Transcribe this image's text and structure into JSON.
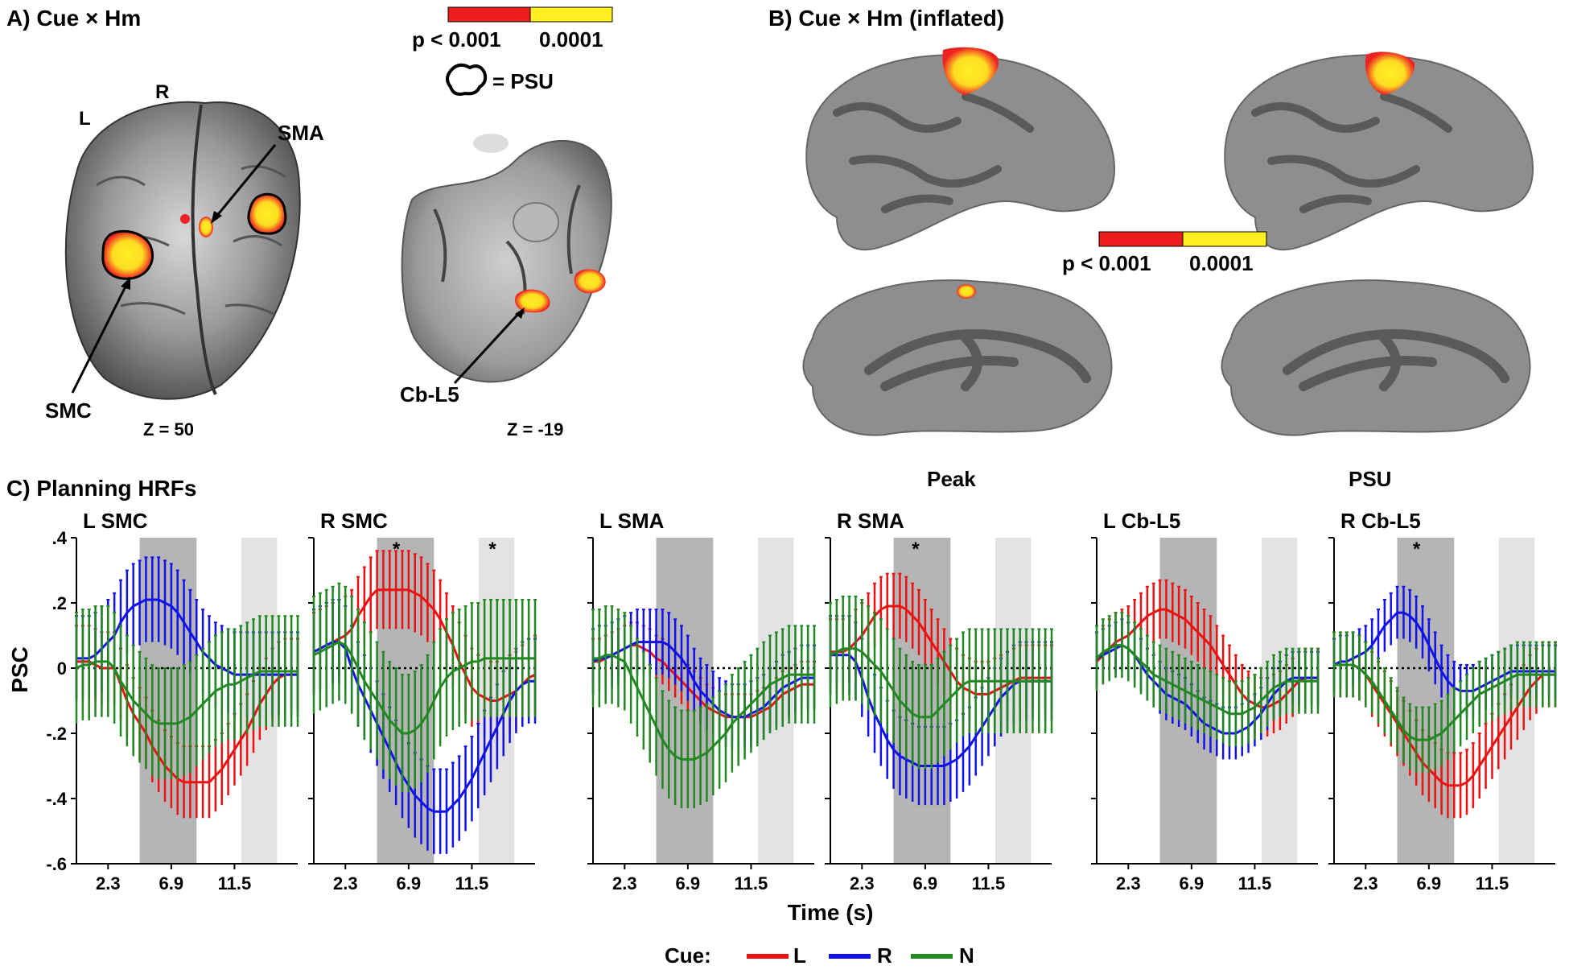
{
  "panel_a": {
    "title": "A) Cue × Hm",
    "colorbar": {
      "low_label": "p < 0.001",
      "high_label": "0.0001",
      "low_color": "#ee1c1c",
      "high_color": "#ffee22"
    },
    "psu_legend": "= PSU",
    "brain1": {
      "label_l": "L",
      "label_r": "R",
      "sma": "SMA",
      "smc": "SMC",
      "slice": "Z = 50"
    },
    "brain2": {
      "cb": "Cb-L5",
      "slice": "Z = -19"
    }
  },
  "panel_b": {
    "title": "B) Cue × Hm (inflated)",
    "colorbar": {
      "low_label": "p < 0.001",
      "high_label": "0.0001"
    },
    "col_peak": "Peak",
    "col_psu": "PSU"
  },
  "panel_c": {
    "title": "C) Planning HRFs",
    "ylabel": "PSC",
    "xlabel": "Time (s)",
    "legend": {
      "prefix": "Cue:",
      "items": [
        {
          "label": "L",
          "color": "#ee1111"
        },
        {
          "label": "R",
          "color": "#1111ee"
        },
        {
          "label": "N",
          "color": "#228822"
        }
      ]
    }
  },
  "chart_data": {
    "type": "line",
    "x": [
      0.0,
      0.46,
      0.92,
      1.38,
      1.84,
      2.3,
      2.76,
      3.22,
      3.68,
      4.14,
      4.6,
      5.06,
      5.52,
      5.98,
      6.44,
      6.9,
      7.36,
      7.82,
      8.28,
      8.74,
      9.2,
      9.66,
      10.12,
      10.58,
      11.04,
      11.5,
      11.96,
      12.42,
      12.88,
      13.34,
      13.8,
      14.26,
      14.72,
      15.18,
      15.64,
      16.1
    ],
    "xticks": [
      "2.3",
      "6.9",
      "11.5"
    ],
    "xtick_values": [
      2.3,
      6.9,
      11.5
    ],
    "ylim": [
      -0.6,
      0.4
    ],
    "yticks": [
      ".4",
      ".2",
      "0",
      "-.2",
      "-.4",
      "-.6"
    ],
    "ytick_values": [
      0.4,
      0.2,
      0,
      -0.2,
      -0.4,
      -0.6
    ],
    "xlabel": "Time (s)",
    "ylabel": "PSC",
    "shaded_windows": [
      {
        "from": 4.6,
        "to": 8.74,
        "shade": "dark"
      },
      {
        "from": 12.0,
        "to": 14.6,
        "shade": "light"
      }
    ],
    "subplots": [
      {
        "title": "L SMC",
        "stars": [],
        "series": [
          {
            "name": "L",
            "color": "#ee1111",
            "values": [
              0.02,
              0.02,
              0.02,
              0.01,
              0.0,
              0.0,
              0.0,
              -0.05,
              -0.1,
              -0.14,
              -0.17,
              -0.2,
              -0.24,
              -0.27,
              -0.3,
              -0.32,
              -0.34,
              -0.35,
              -0.35,
              -0.35,
              -0.35,
              -0.35,
              -0.33,
              -0.31,
              -0.28,
              -0.25,
              -0.22,
              -0.19,
              -0.15,
              -0.11,
              -0.08,
              -0.05,
              -0.03,
              -0.02,
              -0.02,
              -0.02
            ],
            "err": 0.11
          },
          {
            "name": "R",
            "color": "#1111ee",
            "values": [
              0.03,
              0.03,
              0.03,
              0.04,
              0.06,
              0.08,
              0.1,
              0.14,
              0.17,
              0.19,
              0.2,
              0.21,
              0.21,
              0.21,
              0.2,
              0.19,
              0.17,
              0.14,
              0.11,
              0.08,
              0.05,
              0.03,
              0.01,
              0.0,
              -0.01,
              -0.02,
              -0.02,
              -0.02,
              -0.02,
              -0.02,
              -0.02,
              -0.02,
              -0.02,
              -0.02,
              -0.02,
              -0.02
            ],
            "err": 0.13
          },
          {
            "name": "N",
            "color": "#228822",
            "values": [
              0.0,
              0.01,
              0.01,
              0.02,
              0.02,
              0.02,
              0.0,
              -0.04,
              -0.07,
              -0.1,
              -0.12,
              -0.14,
              -0.16,
              -0.17,
              -0.17,
              -0.17,
              -0.17,
              -0.16,
              -0.15,
              -0.13,
              -0.11,
              -0.09,
              -0.07,
              -0.06,
              -0.05,
              -0.05,
              -0.04,
              -0.03,
              -0.02,
              -0.01,
              -0.01,
              -0.01,
              -0.01,
              -0.01,
              -0.01,
              -0.01
            ],
            "err": 0.17
          }
        ]
      },
      {
        "title": "R SMC",
        "stars": [
          6.0,
          13.0
        ],
        "series": [
          {
            "name": "L",
            "color": "#ee1111",
            "values": [
              0.05,
              0.06,
              0.07,
              0.08,
              0.09,
              0.1,
              0.12,
              0.16,
              0.19,
              0.22,
              0.24,
              0.24,
              0.24,
              0.24,
              0.24,
              0.24,
              0.23,
              0.22,
              0.2,
              0.18,
              0.15,
              0.11,
              0.07,
              0.02,
              -0.02,
              -0.06,
              -0.08,
              -0.09,
              -0.1,
              -0.1,
              -0.09,
              -0.08,
              -0.07,
              -0.05,
              -0.03,
              -0.02
            ],
            "err": 0.12
          },
          {
            "name": "R",
            "color": "#1111ee",
            "values": [
              0.05,
              0.06,
              0.07,
              0.08,
              0.08,
              0.06,
              0.0,
              -0.05,
              -0.09,
              -0.13,
              -0.17,
              -0.21,
              -0.25,
              -0.29,
              -0.33,
              -0.36,
              -0.39,
              -0.41,
              -0.43,
              -0.44,
              -0.44,
              -0.44,
              -0.42,
              -0.4,
              -0.37,
              -0.34,
              -0.3,
              -0.26,
              -0.22,
              -0.18,
              -0.14,
              -0.1,
              -0.07,
              -0.05,
              -0.04,
              -0.04
            ],
            "err": 0.13
          },
          {
            "name": "N",
            "color": "#228822",
            "values": [
              0.04,
              0.05,
              0.06,
              0.07,
              0.08,
              0.07,
              0.04,
              0.0,
              -0.04,
              -0.07,
              -0.1,
              -0.13,
              -0.16,
              -0.18,
              -0.2,
              -0.2,
              -0.19,
              -0.17,
              -0.14,
              -0.1,
              -0.06,
              -0.03,
              -0.01,
              0.0,
              0.01,
              0.02,
              0.02,
              0.03,
              0.03,
              0.03,
              0.03,
              0.03,
              0.03,
              0.03,
              0.03,
              0.03
            ],
            "err": 0.18
          }
        ]
      },
      {
        "title": "L SMA",
        "stars": [],
        "series": [
          {
            "name": "L",
            "color": "#ee1111",
            "values": [
              0.02,
              0.02,
              0.03,
              0.04,
              0.05,
              0.06,
              0.07,
              0.07,
              0.06,
              0.05,
              0.03,
              0.02,
              0.0,
              -0.02,
              -0.04,
              -0.06,
              -0.08,
              -0.1,
              -0.12,
              -0.13,
              -0.14,
              -0.15,
              -0.15,
              -0.15,
              -0.15,
              -0.15,
              -0.14,
              -0.13,
              -0.12,
              -0.1,
              -0.08,
              -0.07,
              -0.06,
              -0.05,
              -0.05,
              -0.05
            ],
            "err": 0.07
          },
          {
            "name": "R",
            "color": "#1111ee",
            "values": [
              0.02,
              0.03,
              0.03,
              0.04,
              0.05,
              0.06,
              0.07,
              0.08,
              0.08,
              0.08,
              0.08,
              0.08,
              0.07,
              0.05,
              0.03,
              0.0,
              -0.04,
              -0.07,
              -0.09,
              -0.11,
              -0.13,
              -0.14,
              -0.15,
              -0.15,
              -0.15,
              -0.14,
              -0.13,
              -0.12,
              -0.1,
              -0.08,
              -0.06,
              -0.05,
              -0.04,
              -0.03,
              -0.03,
              -0.03
            ],
            "err": 0.1
          },
          {
            "name": "N",
            "color": "#228822",
            "values": [
              0.03,
              0.03,
              0.04,
              0.04,
              0.03,
              0.02,
              -0.02,
              -0.06,
              -0.1,
              -0.14,
              -0.18,
              -0.22,
              -0.25,
              -0.27,
              -0.28,
              -0.28,
              -0.28,
              -0.27,
              -0.26,
              -0.24,
              -0.22,
              -0.2,
              -0.17,
              -0.15,
              -0.13,
              -0.11,
              -0.09,
              -0.07,
              -0.05,
              -0.04,
              -0.03,
              -0.02,
              -0.02,
              -0.02,
              -0.02,
              -0.02
            ],
            "err": 0.15
          }
        ]
      },
      {
        "title": "R SMA",
        "stars": [
          6.2
        ],
        "series": [
          {
            "name": "L",
            "color": "#ee1111",
            "values": [
              0.05,
              0.05,
              0.05,
              0.06,
              0.08,
              0.1,
              0.13,
              0.16,
              0.18,
              0.19,
              0.19,
              0.19,
              0.18,
              0.16,
              0.14,
              0.11,
              0.08,
              0.05,
              0.02,
              -0.01,
              -0.04,
              -0.06,
              -0.07,
              -0.08,
              -0.08,
              -0.08,
              -0.07,
              -0.06,
              -0.05,
              -0.04,
              -0.03,
              -0.03,
              -0.03,
              -0.03,
              -0.03,
              -0.03
            ],
            "err": 0.1
          },
          {
            "name": "R",
            "color": "#1111ee",
            "values": [
              0.04,
              0.04,
              0.04,
              0.04,
              0.02,
              -0.03,
              -0.09,
              -0.14,
              -0.18,
              -0.22,
              -0.25,
              -0.27,
              -0.28,
              -0.29,
              -0.3,
              -0.3,
              -0.3,
              -0.3,
              -0.3,
              -0.29,
              -0.28,
              -0.26,
              -0.24,
              -0.21,
              -0.18,
              -0.15,
              -0.12,
              -0.09,
              -0.07,
              -0.05,
              -0.04,
              -0.04,
              -0.04,
              -0.04,
              -0.04,
              -0.04
            ],
            "err": 0.12
          },
          {
            "name": "N",
            "color": "#228822",
            "values": [
              0.04,
              0.05,
              0.06,
              0.06,
              0.06,
              0.05,
              0.03,
              0.01,
              -0.01,
              -0.04,
              -0.07,
              -0.1,
              -0.12,
              -0.14,
              -0.15,
              -0.15,
              -0.15,
              -0.13,
              -0.11,
              -0.09,
              -0.07,
              -0.05,
              -0.04,
              -0.04,
              -0.04,
              -0.04,
              -0.04,
              -0.04,
              -0.04,
              -0.04,
              -0.04,
              -0.04,
              -0.04,
              -0.04,
              -0.04,
              -0.04
            ],
            "err": 0.16
          }
        ]
      },
      {
        "title": "L Cb-L5",
        "stars": [],
        "series": [
          {
            "name": "L",
            "color": "#ee1111",
            "values": [
              0.02,
              0.04,
              0.06,
              0.08,
              0.09,
              0.1,
              0.12,
              0.14,
              0.16,
              0.17,
              0.18,
              0.18,
              0.17,
              0.16,
              0.15,
              0.13,
              0.11,
              0.09,
              0.07,
              0.04,
              0.01,
              -0.02,
              -0.05,
              -0.08,
              -0.1,
              -0.11,
              -0.12,
              -0.12,
              -0.11,
              -0.1,
              -0.08,
              -0.06,
              -0.04,
              -0.03,
              -0.03,
              -0.03
            ],
            "err": 0.09
          },
          {
            "name": "R",
            "color": "#1111ee",
            "values": [
              0.03,
              0.04,
              0.05,
              0.06,
              0.07,
              0.06,
              0.04,
              0.01,
              -0.02,
              -0.04,
              -0.06,
              -0.08,
              -0.09,
              -0.1,
              -0.11,
              -0.13,
              -0.15,
              -0.17,
              -0.18,
              -0.19,
              -0.2,
              -0.2,
              -0.2,
              -0.19,
              -0.18,
              -0.16,
              -0.14,
              -0.11,
              -0.08,
              -0.06,
              -0.04,
              -0.03,
              -0.03,
              -0.03,
              -0.03,
              -0.03
            ],
            "err": 0.08
          },
          {
            "name": "N",
            "color": "#228822",
            "values": [
              0.03,
              0.05,
              0.06,
              0.07,
              0.07,
              0.06,
              0.04,
              0.02,
              0.0,
              -0.02,
              -0.03,
              -0.04,
              -0.05,
              -0.06,
              -0.07,
              -0.08,
              -0.09,
              -0.1,
              -0.11,
              -0.12,
              -0.13,
              -0.14,
              -0.14,
              -0.14,
              -0.13,
              -0.12,
              -0.1,
              -0.08,
              -0.06,
              -0.05,
              -0.04,
              -0.04,
              -0.04,
              -0.04,
              -0.04,
              -0.04
            ],
            "err": 0.1
          }
        ]
      },
      {
        "title": "R Cb-L5",
        "stars": [
          6.0
        ],
        "series": [
          {
            "name": "L",
            "color": "#ee1111",
            "values": [
              0.01,
              0.01,
              0.01,
              0.01,
              0.0,
              -0.02,
              -0.05,
              -0.08,
              -0.11,
              -0.14,
              -0.17,
              -0.2,
              -0.23,
              -0.26,
              -0.29,
              -0.31,
              -0.33,
              -0.35,
              -0.36,
              -0.36,
              -0.36,
              -0.35,
              -0.33,
              -0.3,
              -0.27,
              -0.24,
              -0.21,
              -0.18,
              -0.15,
              -0.12,
              -0.09,
              -0.06,
              -0.04,
              -0.02,
              -0.02,
              -0.02
            ],
            "err": 0.1
          },
          {
            "name": "R",
            "color": "#1111ee",
            "values": [
              0.01,
              0.02,
              0.02,
              0.03,
              0.04,
              0.05,
              0.07,
              0.1,
              0.13,
              0.15,
              0.17,
              0.17,
              0.16,
              0.14,
              0.11,
              0.07,
              0.03,
              -0.01,
              -0.04,
              -0.06,
              -0.07,
              -0.07,
              -0.07,
              -0.06,
              -0.05,
              -0.04,
              -0.03,
              -0.02,
              -0.01,
              -0.01,
              -0.01,
              -0.01,
              -0.01,
              -0.01,
              -0.01,
              -0.01
            ],
            "err": 0.08
          },
          {
            "name": "N",
            "color": "#228822",
            "values": [
              0.01,
              0.01,
              0.01,
              0.01,
              0.0,
              -0.02,
              -0.04,
              -0.07,
              -0.1,
              -0.13,
              -0.16,
              -0.19,
              -0.21,
              -0.22,
              -0.22,
              -0.22,
              -0.21,
              -0.2,
              -0.18,
              -0.16,
              -0.14,
              -0.12,
              -0.1,
              -0.08,
              -0.07,
              -0.06,
              -0.05,
              -0.04,
              -0.03,
              -0.02,
              -0.02,
              -0.02,
              -0.02,
              -0.02,
              -0.02,
              -0.02
            ],
            "err": 0.1
          }
        ]
      }
    ]
  }
}
